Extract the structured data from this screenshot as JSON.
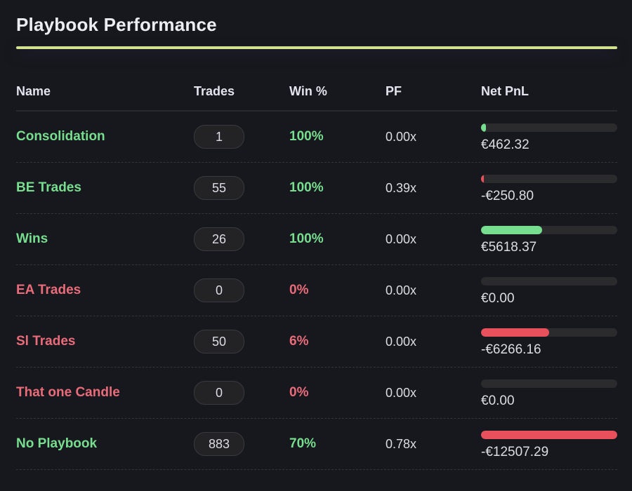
{
  "title": "Playbook Performance",
  "colors": {
    "accent": "#d4e28f",
    "green": "#77dd8f",
    "red": "#e8505b"
  },
  "headers": {
    "name": "Name",
    "trades": "Trades",
    "win": "Win %",
    "pf": "PF",
    "pnl": "Net PnL"
  },
  "rows": [
    {
      "name": "Consolidation",
      "trades": "1",
      "win": "100%",
      "pf": "0.00x",
      "pnl": "€462.32",
      "positive": true,
      "bar_fraction": 0.037
    },
    {
      "name": "BE Trades",
      "trades": "55",
      "win": "100%",
      "pf": "0.39x",
      "pnl": "-€250.80",
      "positive": true,
      "bar_fraction": 0.02,
      "bar_negative": true
    },
    {
      "name": "Wins",
      "trades": "26",
      "win": "100%",
      "pf": "0.00x",
      "pnl": "€5618.37",
      "positive": true,
      "bar_fraction": 0.449
    },
    {
      "name": "EA Trades",
      "trades": "0",
      "win": "0%",
      "pf": "0.00x",
      "pnl": "€0.00",
      "positive": false,
      "bar_fraction": 0
    },
    {
      "name": "Sl Trades",
      "trades": "50",
      "win": "6%",
      "pf": "0.00x",
      "pnl": "-€6266.16",
      "positive": false,
      "bar_fraction": 0.501,
      "bar_negative": true
    },
    {
      "name": "That one Candle",
      "trades": "0",
      "win": "0%",
      "pf": "0.00x",
      "pnl": "€0.00",
      "positive": false,
      "bar_fraction": 0
    },
    {
      "name": "No Playbook",
      "trades": "883",
      "win": "70%",
      "pf": "0.78x",
      "pnl": "-€12507.29",
      "positive": true,
      "bar_fraction": 1.0,
      "bar_negative": true
    }
  ]
}
